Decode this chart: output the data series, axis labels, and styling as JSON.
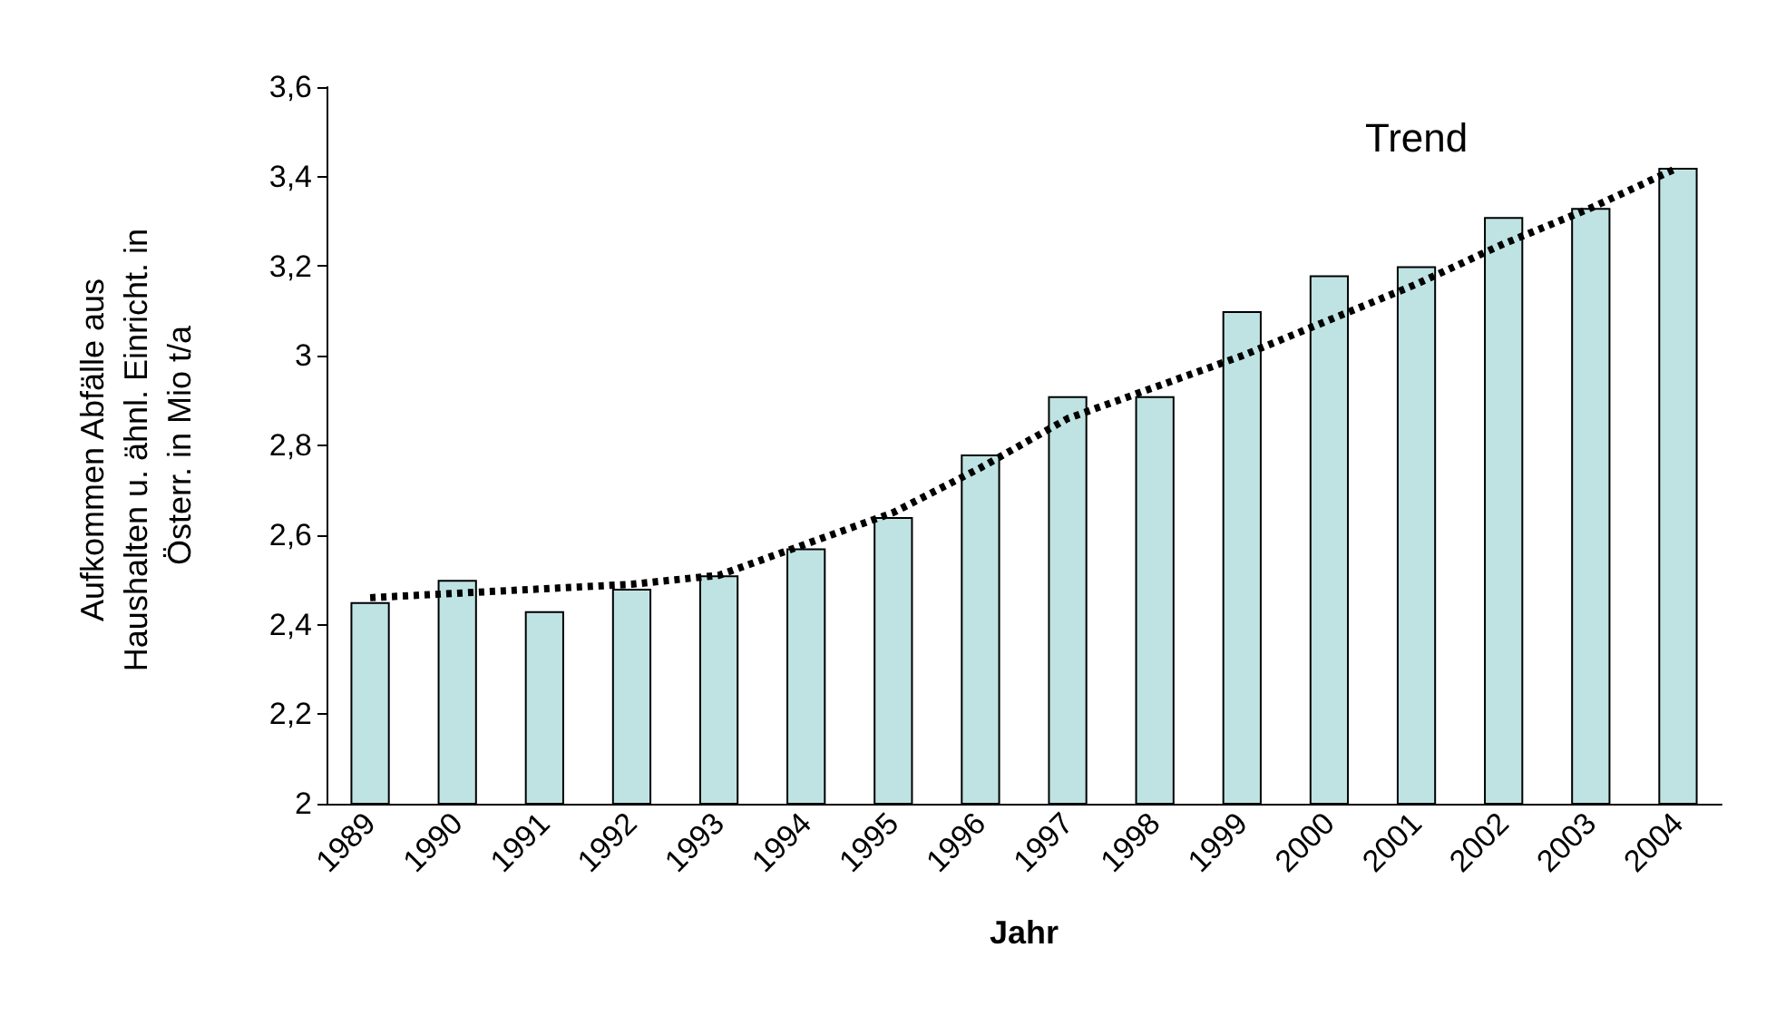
{
  "chart_data": {
    "type": "bar",
    "xlabel": "Jahr",
    "ylabel": "Aufkommen Abfälle aus Haushalten u. ähnl. Einricht. in Österr. in Mio t/a",
    "categories": [
      "1989",
      "1990",
      "1991",
      "1992",
      "1993",
      "1994",
      "1995",
      "1996",
      "1997",
      "1998",
      "1999",
      "2000",
      "2001",
      "2002",
      "2003",
      "2004"
    ],
    "series": [
      {
        "color": "#bfe3e3",
        "values": [
          2.45,
          2.5,
          2.43,
          2.48,
          2.51,
          2.57,
          2.64,
          2.78,
          2.91,
          2.91,
          3.1,
          3.18,
          3.2,
          3.31,
          3.33,
          3.42
        ]
      },
      {
        "type": "line",
        "color": "#000000",
        "line_style": "dotted",
        "marker": "none",
        "values": [
          2.46,
          2.47,
          2.48,
          2.49,
          2.51,
          2.58,
          2.65,
          2.75,
          2.86,
          2.93,
          3.0,
          3.08,
          3.16,
          3.25,
          3.33,
          3.42
        ]
      }
    ],
    "ylim": [
      2,
      3.6
    ],
    "yticks": [
      {
        "value": 2,
        "label": "2"
      },
      {
        "value": 2.2,
        "label": "2,2"
      },
      {
        "value": 2.4,
        "label": "2,4"
      },
      {
        "value": 2.6,
        "label": "2,6"
      },
      {
        "value": 2.8,
        "label": "2,8"
      },
      {
        "value": 3,
        "label": "3"
      },
      {
        "value": 3.2,
        "label": "3,2"
      },
      {
        "value": 3.4,
        "label": "3,4"
      },
      {
        "value": 3.6,
        "label": "3,6"
      }
    ],
    "annotations": [
      "Trend"
    ],
    "grid": false
  }
}
